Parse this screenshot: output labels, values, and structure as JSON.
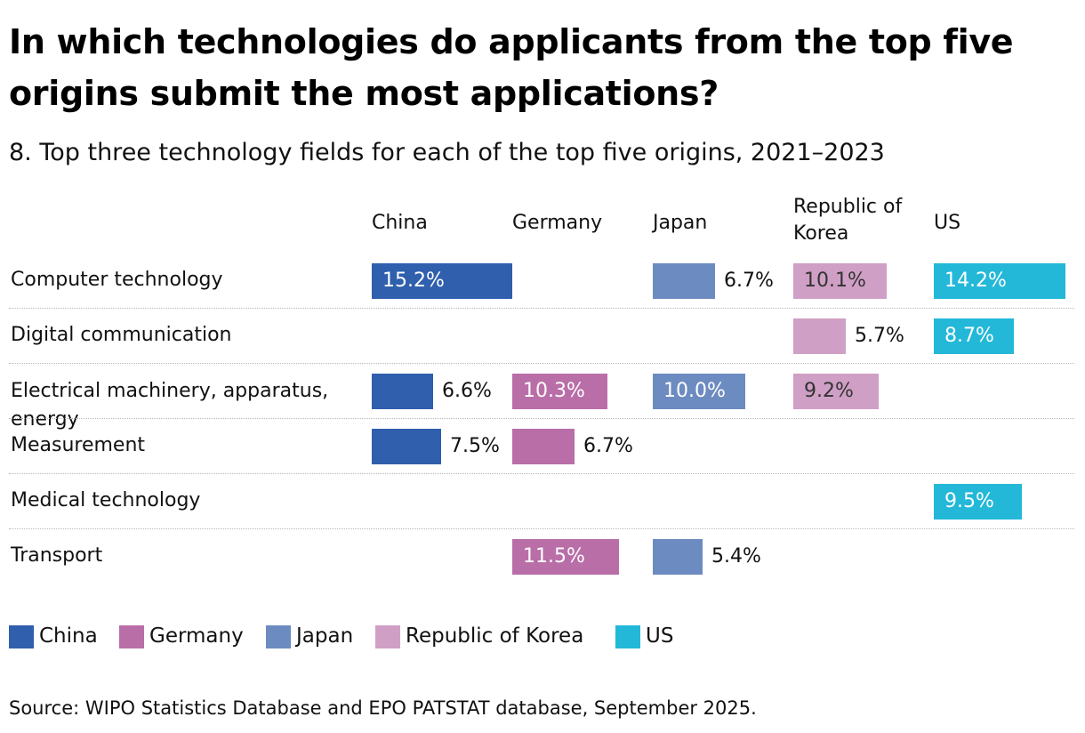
{
  "title": "In which technologies do applicants from the top five origins submit the most applications?",
  "subtitle": "8. Top three technology fields for each of the top five origins, 2021–2023",
  "source": "Source: WIPO Statistics Database and EPO PATSTAT database, September 2025.",
  "colors": {
    "China": "#2f5fad",
    "Germany": "#b96ea8",
    "Japan": "#6c8bc0",
    "Republic of Korea": "#d09fc5",
    "US": "#23b8d8"
  },
  "chart_data": {
    "type": "bar",
    "title": "In which technologies do applicants from the top five origins submit the most applications?",
    "subtitle": "8. Top three technology fields for each of the top five origins, 2021–2023",
    "unit": "%",
    "origins": [
      "China",
      "Germany",
      "Japan",
      "Republic of Korea",
      "US"
    ],
    "origin_headers": [
      "China",
      "Germany",
      "Japan",
      "Republic of\nKorea",
      "US"
    ],
    "categories": [
      "Computer technology",
      "Digital communication",
      "Electrical machinery, apparatus, energy",
      "Measurement",
      "Medical technology",
      "Transport"
    ],
    "category_labels": [
      "Computer technology",
      "Digital communication",
      "Electrical machinery, apparatus,\nenergy",
      "Measurement",
      "Medical technology",
      "Transport"
    ],
    "series": [
      {
        "name": "China",
        "values": [
          15.2,
          null,
          6.6,
          7.5,
          null,
          null
        ]
      },
      {
        "name": "Germany",
        "values": [
          null,
          null,
          10.3,
          6.7,
          null,
          11.5
        ]
      },
      {
        "name": "Japan",
        "values": [
          6.7,
          null,
          10.0,
          null,
          null,
          5.4
        ]
      },
      {
        "name": "Republic of Korea",
        "values": [
          10.1,
          5.7,
          9.2,
          null,
          null,
          null
        ]
      },
      {
        "name": "US",
        "values": [
          14.2,
          8.7,
          null,
          null,
          9.5,
          null
        ]
      }
    ],
    "value_labels": [
      [
        "15.2%",
        null,
        "6.6%",
        "7.5%",
        null,
        null
      ],
      [
        null,
        null,
        "10.3%",
        "6.7%",
        null,
        "11.5%"
      ],
      [
        "6.7%",
        null,
        "10.0%",
        null,
        null,
        "5.4%"
      ],
      [
        "10.1%",
        "5.7%",
        "9.2%",
        null,
        null,
        null
      ],
      [
        "14.2%",
        "8.7%",
        null,
        null,
        "9.5%",
        null
      ]
    ],
    "legend": [
      "China",
      "Germany",
      "Japan",
      "Republic of Korea",
      "US"
    ],
    "legend_position": "bottom-left",
    "grid": false
  }
}
